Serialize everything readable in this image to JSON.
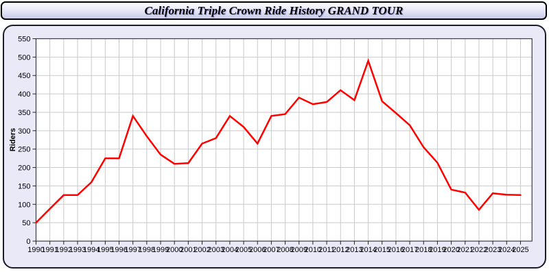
{
  "window": {
    "title": "California Triple Crown Ride History GRAND TOUR"
  },
  "chart_data": {
    "type": "line",
    "title": "California Triple Crown Ride History GRAND TOUR",
    "xlabel": "",
    "ylabel": "Riders",
    "ylim": [
      0,
      550
    ],
    "ytick_step": 50,
    "grid": true,
    "legend": "none",
    "categories": [
      1990,
      1991,
      1992,
      1993,
      1994,
      1995,
      1996,
      1997,
      1998,
      1999,
      2000,
      2001,
      2002,
      2003,
      2004,
      2005,
      2006,
      2007,
      2008,
      2009,
      2010,
      2011,
      2012,
      2013,
      2014,
      2015,
      2016,
      2017,
      2018,
      2019,
      2020,
      2021,
      2022,
      2023,
      2024,
      2025
    ],
    "series": [
      {
        "name": "Riders",
        "values": [
          50,
          88,
          125,
          125,
          160,
          225,
          225,
          340,
          285,
          235,
          210,
          212,
          265,
          280,
          340,
          310,
          265,
          340,
          345,
          390,
          372,
          378,
          410,
          383,
          490,
          380,
          348,
          315,
          255,
          213,
          140,
          132,
          85,
          130,
          126,
          125
        ]
      }
    ]
  },
  "colors": {
    "line": "#ff0000",
    "plot_background": "#ffffff",
    "panel_background": "#e9e9f7",
    "gridline": "#c9c9c9",
    "axis_frame": "#3c3c46",
    "tick": "#222222",
    "label_text": "#000000",
    "title_bar_border": "#000000"
  }
}
